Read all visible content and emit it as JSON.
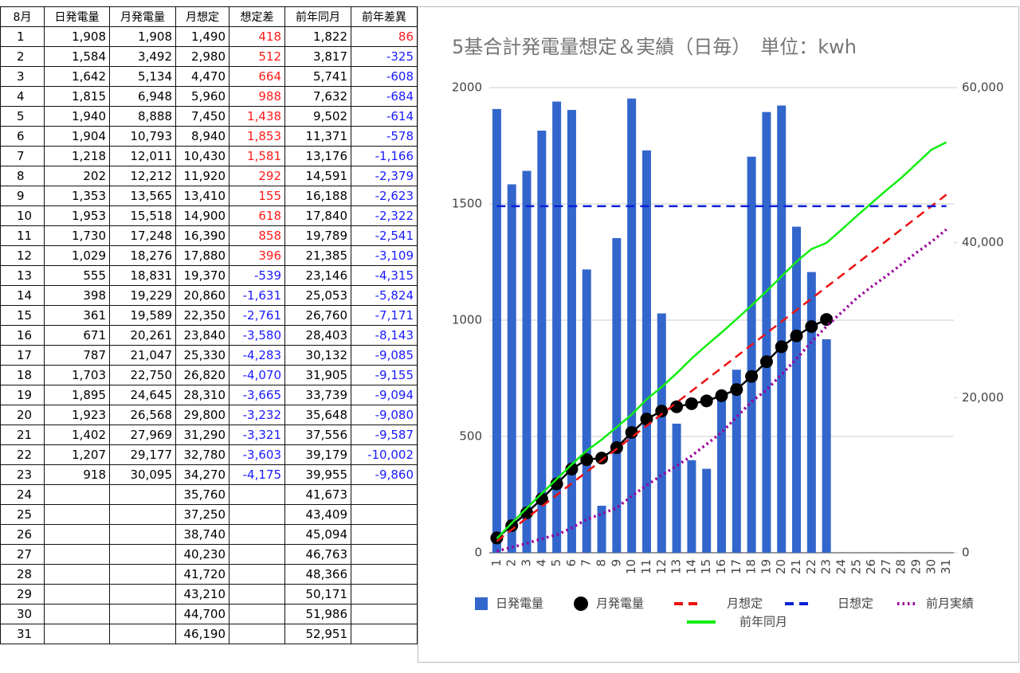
{
  "table": {
    "headers": [
      "8月",
      "日発電量",
      "月発電量",
      "月想定",
      "想定差",
      "前年同月",
      "前年差異"
    ],
    "rows": [
      [
        "1",
        "1,908",
        "1,908",
        "1,490",
        "418",
        "1,822",
        "86"
      ],
      [
        "2",
        "1,584",
        "3,492",
        "2,980",
        "512",
        "3,817",
        "-325"
      ],
      [
        "3",
        "1,642",
        "5,134",
        "4,470",
        "664",
        "5,741",
        "-608"
      ],
      [
        "4",
        "1,815",
        "6,948",
        "5,960",
        "988",
        "7,632",
        "-684"
      ],
      [
        "5",
        "1,940",
        "8,888",
        "7,450",
        "1,438",
        "9,502",
        "-614"
      ],
      [
        "6",
        "1,904",
        "10,793",
        "8,940",
        "1,853",
        "11,371",
        "-578"
      ],
      [
        "7",
        "1,218",
        "12,011",
        "10,430",
        "1,581",
        "13,176",
        "-1,166"
      ],
      [
        "8",
        "202",
        "12,212",
        "11,920",
        "292",
        "14,591",
        "-2,379"
      ],
      [
        "9",
        "1,353",
        "13,565",
        "13,410",
        "155",
        "16,188",
        "-2,623"
      ],
      [
        "10",
        "1,953",
        "15,518",
        "14,900",
        "618",
        "17,840",
        "-2,322"
      ],
      [
        "11",
        "1,730",
        "17,248",
        "16,390",
        "858",
        "19,789",
        "-2,541"
      ],
      [
        "12",
        "1,029",
        "18,276",
        "17,880",
        "396",
        "21,385",
        "-3,109"
      ],
      [
        "13",
        "555",
        "18,831",
        "19,370",
        "-539",
        "23,146",
        "-4,315"
      ],
      [
        "14",
        "398",
        "19,229",
        "20,860",
        "-1,631",
        "25,053",
        "-5,824"
      ],
      [
        "15",
        "361",
        "19,589",
        "22,350",
        "-2,761",
        "26,760",
        "-7,171"
      ],
      [
        "16",
        "671",
        "20,261",
        "23,840",
        "-3,580",
        "28,403",
        "-8,143"
      ],
      [
        "17",
        "787",
        "21,047",
        "25,330",
        "-4,283",
        "30,132",
        "-9,085"
      ],
      [
        "18",
        "1,703",
        "22,750",
        "26,820",
        "-4,070",
        "31,905",
        "-9,155"
      ],
      [
        "19",
        "1,895",
        "24,645",
        "28,310",
        "-3,665",
        "33,739",
        "-9,094"
      ],
      [
        "20",
        "1,923",
        "26,568",
        "29,800",
        "-3,232",
        "35,648",
        "-9,080"
      ],
      [
        "21",
        "1,402",
        "27,969",
        "31,290",
        "-3,321",
        "37,556",
        "-9,587"
      ],
      [
        "22",
        "1,207",
        "29,177",
        "32,780",
        "-3,603",
        "39,179",
        "-10,002"
      ],
      [
        "23",
        "918",
        "30,095",
        "34,270",
        "-4,175",
        "39,955",
        "-9,860"
      ],
      [
        "24",
        null,
        null,
        "35,760",
        null,
        "41,673",
        null
      ],
      [
        "25",
        null,
        null,
        "37,250",
        null,
        "43,409",
        null
      ],
      [
        "26",
        null,
        null,
        "38,740",
        null,
        "45,094",
        null
      ],
      [
        "27",
        null,
        null,
        "40,230",
        null,
        "46,763",
        null
      ],
      [
        "28",
        null,
        null,
        "41,720",
        null,
        "48,366",
        null
      ],
      [
        "29",
        null,
        null,
        "43,210",
        null,
        "50,171",
        null
      ],
      [
        "30",
        null,
        null,
        "44,700",
        null,
        "51,986",
        null
      ],
      [
        "31",
        null,
        null,
        "46,190",
        null,
        "52,951",
        null
      ]
    ]
  },
  "chart_data": {
    "type": "combo",
    "title": "5基合計発電量想定＆実績（日毎）　単位：kwh",
    "categories": [
      "1",
      "2",
      "3",
      "4",
      "5",
      "6",
      "7",
      "8",
      "9",
      "10",
      "11",
      "12",
      "13",
      "14",
      "15",
      "16",
      "17",
      "18",
      "19",
      "20",
      "21",
      "22",
      "23",
      "24",
      "25",
      "26",
      "27",
      "28",
      "29",
      "30",
      "31"
    ],
    "ylim": [
      0,
      2000
    ],
    "yticks": [
      0,
      500,
      1000,
      1500,
      2000
    ],
    "y2lim": [
      0,
      60000
    ],
    "y2ticks": [
      0,
      {
        "value": 20000,
        "label": "20,000"
      },
      {
        "value": 40000,
        "label": "40,000"
      },
      {
        "value": 60000,
        "label": "60,000"
      }
    ],
    "grid": true,
    "series": [
      {
        "name": "日発電量",
        "type": "bar",
        "color": "#3366cc",
        "values": [
          1908,
          1584,
          1642,
          1815,
          1940,
          1904,
          1218,
          202,
          1353,
          1953,
          1730,
          1029,
          555,
          398,
          361,
          671,
          787,
          1703,
          1895,
          1923,
          1402,
          1207,
          918,
          null,
          null,
          null,
          null,
          null,
          null,
          null,
          null
        ]
      },
      {
        "name": "月発電量",
        "type": "line",
        "marker": "circle",
        "axis": "y2",
        "color": "#000000",
        "values": [
          1908,
          3492,
          5134,
          6948,
          8888,
          10793,
          12011,
          12212,
          13565,
          15518,
          17248,
          18276,
          18831,
          19229,
          19589,
          20261,
          21047,
          22750,
          24645,
          26568,
          27969,
          29177,
          30095,
          null,
          null,
          null,
          null,
          null,
          null,
          null,
          null
        ]
      },
      {
        "name": "月想定",
        "type": "line",
        "dash": "dashed",
        "axis": "y2",
        "color": "#ee1111",
        "values": [
          1490,
          2980,
          4470,
          5960,
          7450,
          8940,
          10430,
          11920,
          13410,
          14900,
          16390,
          17880,
          19370,
          20860,
          22350,
          23840,
          25330,
          26820,
          28310,
          29800,
          31290,
          32780,
          34270,
          35760,
          37250,
          38740,
          40230,
          41720,
          43210,
          44700,
          46190
        ]
      },
      {
        "name": "日想定",
        "type": "line",
        "dash": "dashed",
        "color": "#0a1fd8",
        "values": [
          1490,
          1490,
          1490,
          1490,
          1490,
          1490,
          1490,
          1490,
          1490,
          1490,
          1490,
          1490,
          1490,
          1490,
          1490,
          1490,
          1490,
          1490,
          1490,
          1490,
          1490,
          1490,
          1490,
          1490,
          1490,
          1490,
          1490,
          1490,
          1490,
          1490,
          1490
        ]
      },
      {
        "name": "前月実績",
        "type": "line",
        "dash": "dotted",
        "axis": "y2",
        "color": "#990099",
        "values": [
          200,
          700,
          1200,
          1800,
          2300,
          3200,
          4300,
          5000,
          5800,
          7300,
          8700,
          10000,
          11200,
          12500,
          14000,
          15500,
          17500,
          19500,
          21000,
          23000,
          25000,
          27200,
          29200,
          31000,
          32800,
          34300,
          35700,
          37200,
          38700,
          40100,
          41700
        ]
      },
      {
        "name": "前年同月",
        "type": "line",
        "axis": "y2",
        "color": "#11ee11",
        "values": [
          1822,
          3817,
          5741,
          7632,
          9502,
          11371,
          13176,
          14591,
          16188,
          17840,
          19789,
          21385,
          23146,
          25053,
          26760,
          28403,
          30132,
          31905,
          33739,
          35648,
          37556,
          39179,
          39955,
          41673,
          43409,
          45094,
          46763,
          48366,
          50171,
          51986,
          52951
        ]
      }
    ]
  }
}
